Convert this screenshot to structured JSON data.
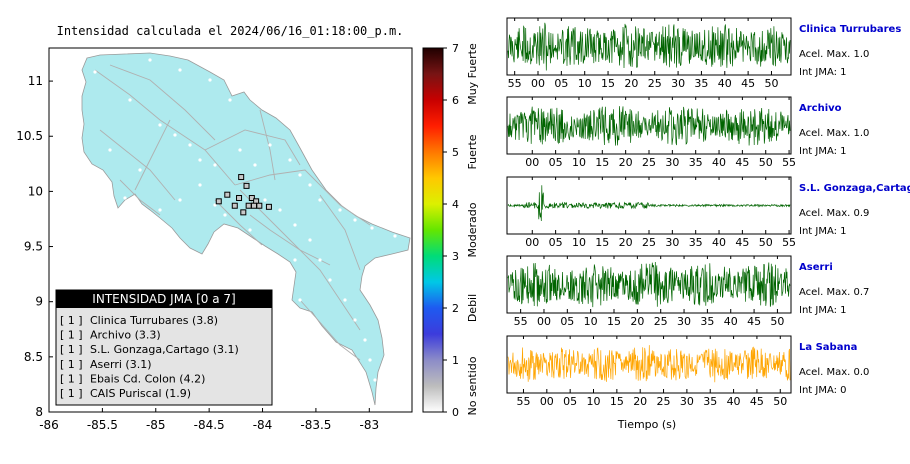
{
  "chart_data": [
    {
      "type": "scatter",
      "title": "Intensidad calculada el 2024/06/16_01:18:00_p.m.",
      "xlim": [
        -86,
        -82.6
      ],
      "ylim": [
        8,
        11.3
      ],
      "x_ticks": [
        -86,
        -85.5,
        -85,
        -84.5,
        -84,
        -83.5,
        -83
      ],
      "y_ticks": [
        8,
        8.5,
        9,
        9.5,
        10,
        10.5,
        11
      ],
      "stations": [
        {
          "lon": -84.2,
          "lat": 10.13
        },
        {
          "lon": -84.15,
          "lat": 10.05
        },
        {
          "lon": -84.33,
          "lat": 9.97
        },
        {
          "lon": -84.41,
          "lat": 9.91
        },
        {
          "lon": -84.22,
          "lat": 9.94
        },
        {
          "lon": -84.1,
          "lat": 9.94
        },
        {
          "lon": -84.06,
          "lat": 9.91
        },
        {
          "lon": -84.13,
          "lat": 9.87
        },
        {
          "lon": -84.08,
          "lat": 9.87
        },
        {
          "lon": -84.03,
          "lat": 9.87
        },
        {
          "lon": -84.26,
          "lat": 9.87
        },
        {
          "lon": -83.94,
          "lat": 9.86
        },
        {
          "lon": -84.18,
          "lat": 9.81
        }
      ],
      "legend": {
        "title": "INTENSIDAD JMA [0 a 7]",
        "entries": [
          {
            "count": "[ 1 ]",
            "label": "Clinica Turrubares (3.8)"
          },
          {
            "count": "[ 1 ]",
            "label": "Archivo (3.3)"
          },
          {
            "count": "[ 1 ]",
            "label": "S.L. Gonzaga,Cartago (3.1)"
          },
          {
            "count": "[ 1 ]",
            "label": "Aserri (3.1)"
          },
          {
            "count": "[ 1 ]",
            "label": "Ebais Cd. Colon (4.2)"
          },
          {
            "count": "[ 1 ]",
            "label": "CAIS Puriscal (1.9)"
          }
        ]
      },
      "colorbar": {
        "ticks": [
          0,
          1,
          2,
          3,
          4,
          5,
          6,
          7
        ],
        "labels": [
          "No sentido",
          "Debil",
          "Moderado",
          "Fuerte",
          "Muy Fuerte"
        ],
        "stops": [
          "#ffffff",
          "#bdbdbd",
          "#8c8cc8",
          "#3c3cdc",
          "#1e5af0",
          "#00c8e6",
          "#00dc78",
          "#64e600",
          "#dcf000",
          "#ffc800",
          "#ff7800",
          "#ff1e00",
          "#c80000",
          "#781414",
          "#200000"
        ]
      }
    },
    {
      "type": "line",
      "xlabel": "Tiempo (s)",
      "series": [
        {
          "name": "Clinica Turrubares",
          "accel_label": "Acel. Max. 1.0",
          "int_label": "Int JMA: 1",
          "color": "#006400",
          "ticks": [
            "55",
            "00",
            "05",
            "10",
            "15",
            "20",
            "25",
            "30",
            "35",
            "40",
            "45",
            "50"
          ],
          "tick_start": 0.027,
          "tick_step": 0.0822
        },
        {
          "name": "Archivo",
          "accel_label": "Acel. Max. 1.0",
          "int_label": "Int JMA: 1",
          "color": "#006400",
          "ticks": [
            "00",
            "05",
            "10",
            "15",
            "20",
            "25",
            "30",
            "35",
            "40",
            "45",
            "50",
            "55"
          ],
          "tick_start": 0.089,
          "tick_step": 0.0822
        },
        {
          "name": "S.L. Gonzaga,Cartago",
          "accel_label": "Acel. Max. 0.9",
          "int_label": "Int JMA: 1",
          "color": "#006400",
          "ticks": [
            "00",
            "05",
            "10",
            "15",
            "20",
            "25",
            "30",
            "35",
            "40",
            "45",
            "50",
            "55"
          ],
          "tick_start": 0.089,
          "tick_step": 0.0822
        },
        {
          "name": "Aserri",
          "accel_label": "Acel. Max. 0.7",
          "int_label": "Int JMA: 1",
          "color": "#006400",
          "ticks": [
            "55",
            "00",
            "05",
            "10",
            "15",
            "20",
            "25",
            "30",
            "35",
            "40",
            "45",
            "50"
          ],
          "tick_start": 0.048,
          "tick_step": 0.0822
        },
        {
          "name": "La Sabana",
          "accel_label": "Acel. Max. 0.0",
          "int_label": "Int JMA: 0",
          "color": "#ffa500",
          "ticks": [
            "55",
            "00",
            "05",
            "10",
            "15",
            "20",
            "25",
            "30",
            "35",
            "40",
            "45",
            "50"
          ],
          "tick_start": 0.058,
          "tick_step": 0.0822
        }
      ]
    }
  ]
}
